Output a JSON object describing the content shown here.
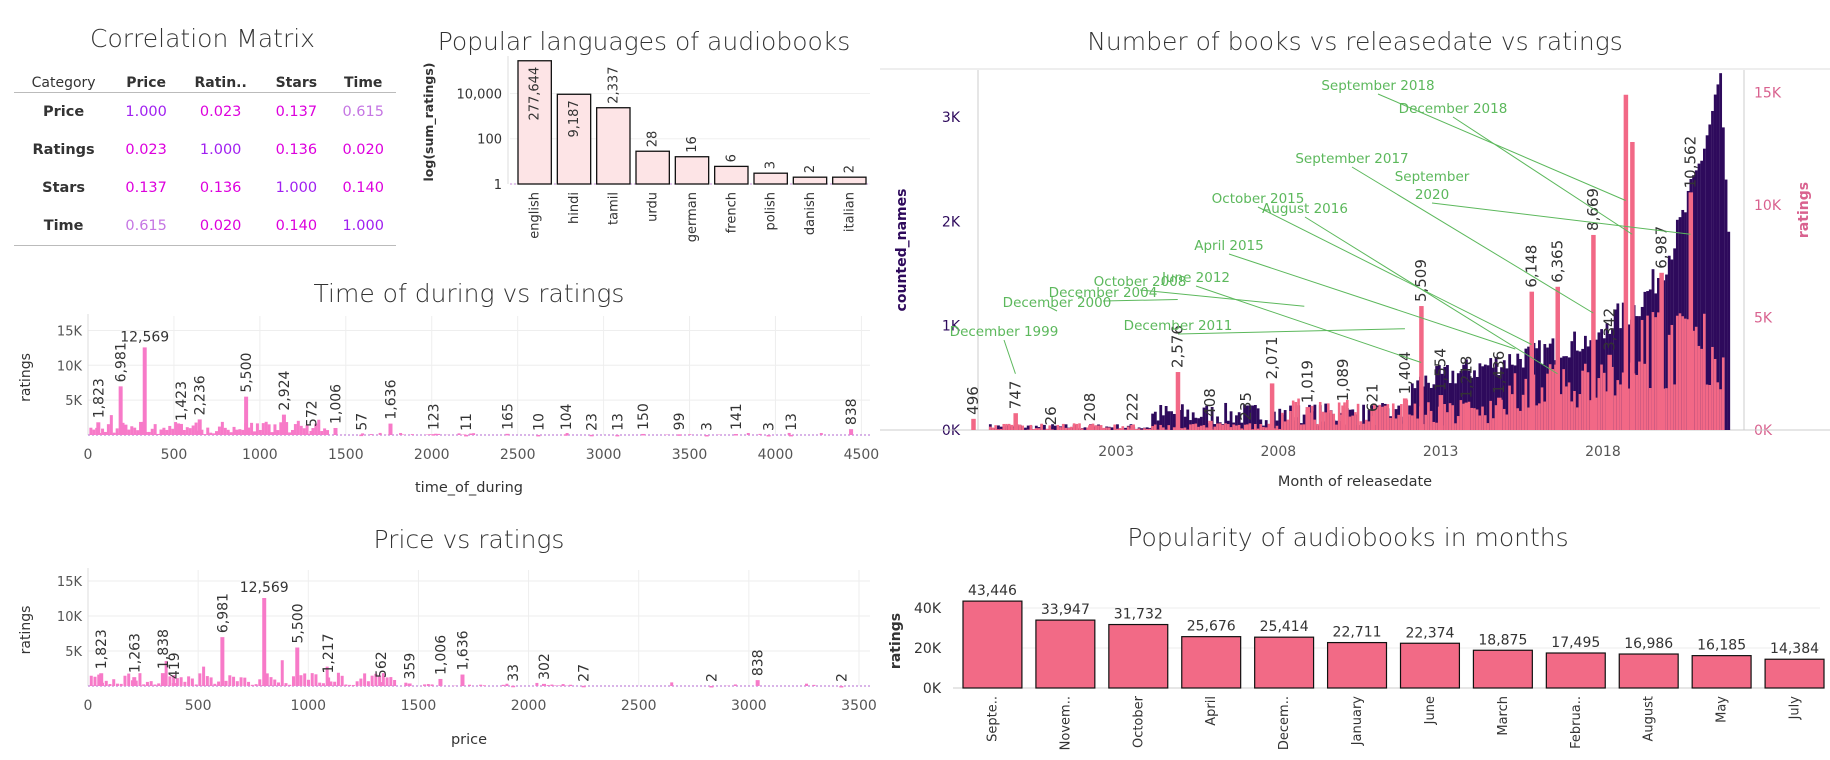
{
  "correlation": {
    "title": "Correlation Matrix",
    "corner": "Category",
    "headers": [
      "Price",
      "Ratin..",
      "Stars",
      "Time"
    ],
    "rows": [
      {
        "label": "Price",
        "cells": [
          {
            "v": "1.000",
            "c": "#a020f0"
          },
          {
            "v": "0.023",
            "c": "#dd00dd"
          },
          {
            "v": "0.137",
            "c": "#dd00dd"
          },
          {
            "v": "0.615",
            "c": "#c576e3"
          }
        ]
      },
      {
        "label": "Ratings",
        "cells": [
          {
            "v": "0.023",
            "c": "#dd00dd"
          },
          {
            "v": "1.000",
            "c": "#a020f0"
          },
          {
            "v": "0.136",
            "c": "#dd00dd"
          },
          {
            "v": "0.020",
            "c": "#dd00dd"
          }
        ]
      },
      {
        "label": "Stars",
        "cells": [
          {
            "v": "0.137",
            "c": "#dd00dd"
          },
          {
            "v": "0.136",
            "c": "#dd00dd"
          },
          {
            "v": "1.000",
            "c": "#a020f0"
          },
          {
            "v": "0.140",
            "c": "#dd00dd"
          }
        ]
      },
      {
        "label": "Time",
        "cells": [
          {
            "v": "0.615",
            "c": "#c576e3"
          },
          {
            "v": "0.020",
            "c": "#dd00dd"
          },
          {
            "v": "0.140",
            "c": "#dd00dd"
          },
          {
            "v": "1.000",
            "c": "#a020f0"
          }
        ]
      }
    ]
  },
  "chart_data": [
    {
      "id": "languages",
      "type": "bar",
      "title": "Popular languages of audiobooks",
      "ylabel": "log(sum_ratings)",
      "xlabel": "",
      "yscale": "log",
      "yticks": [
        "1",
        "100",
        "10,000"
      ],
      "categories": [
        "english",
        "hindi",
        "tamil",
        "urdu",
        "german",
        "french",
        "polish",
        "danish",
        "italian"
      ],
      "values": [
        277644,
        9187,
        2337,
        28,
        16,
        6,
        3,
        2,
        2
      ],
      "labels": [
        "277,644",
        "9,187",
        "2,337",
        "28",
        "16",
        "6",
        "3",
        "2",
        "2"
      ],
      "color": "#fde4e6"
    },
    {
      "id": "duration",
      "type": "bar",
      "title": "Time of during vs ratings",
      "xlabel": "time_of_during",
      "ylabel": "ratings",
      "xlim": [
        0,
        4550
      ],
      "ylim": [
        0,
        16500
      ],
      "xticks": [
        "0",
        "500",
        "1000",
        "1500",
        "2000",
        "2500",
        "3000",
        "3500",
        "4000",
        "4500"
      ],
      "yticks": [
        "5K",
        "10K",
        "15K"
      ],
      "color": "#f77ac8",
      "labeled_points": [
        {
          "x": 60,
          "y": 1823,
          "label": "1,823"
        },
        {
          "x": 190,
          "y": 6981,
          "label": "6,981"
        },
        {
          "x": 330,
          "y": 12569,
          "label": "12,569"
        },
        {
          "x": 540,
          "y": 1423,
          "label": "1,423"
        },
        {
          "x": 650,
          "y": 2236,
          "label": "2,236"
        },
        {
          "x": 920,
          "y": 5500,
          "label": "5,500"
        },
        {
          "x": 1140,
          "y": 2924,
          "label": "2,924"
        },
        {
          "x": 1300,
          "y": 572,
          "label": "572"
        },
        {
          "x": 1440,
          "y": 1006,
          "label": "1,006"
        },
        {
          "x": 1590,
          "y": 57,
          "label": "57"
        },
        {
          "x": 1760,
          "y": 1636,
          "label": "1,636"
        },
        {
          "x": 2010,
          "y": 123,
          "label": "123"
        },
        {
          "x": 2200,
          "y": 11,
          "label": "11"
        },
        {
          "x": 2440,
          "y": 165,
          "label": "165"
        },
        {
          "x": 2620,
          "y": 10,
          "label": "10"
        },
        {
          "x": 2780,
          "y": 104,
          "label": "104"
        },
        {
          "x": 2930,
          "y": 23,
          "label": "23"
        },
        {
          "x": 3080,
          "y": 13,
          "label": "13"
        },
        {
          "x": 3230,
          "y": 150,
          "label": "150"
        },
        {
          "x": 3440,
          "y": 99,
          "label": "99"
        },
        {
          "x": 3600,
          "y": 3,
          "label": "3"
        },
        {
          "x": 3770,
          "y": 141,
          "label": "141"
        },
        {
          "x": 3960,
          "y": 3,
          "label": "3"
        },
        {
          "x": 4090,
          "y": 13,
          "label": "13"
        },
        {
          "x": 4440,
          "y": 838,
          "label": "838"
        }
      ]
    },
    {
      "id": "price",
      "type": "bar",
      "title": "Price vs ratings",
      "xlabel": "price",
      "ylabel": "ratings",
      "xlim": [
        0,
        3550
      ],
      "ylim": [
        0,
        16000
      ],
      "xticks": [
        "0",
        "500",
        "1000",
        "1500",
        "2000",
        "2500",
        "3000",
        "3500"
      ],
      "yticks": [
        "5K",
        "10K",
        "15K"
      ],
      "color": "#f77ac8",
      "labeled_points": [
        {
          "x": 60,
          "y": 1823,
          "label": "1,823"
        },
        {
          "x": 210,
          "y": 1263,
          "label": "1,263"
        },
        {
          "x": 340,
          "y": 1838,
          "label": "1,838"
        },
        {
          "x": 390,
          "y": 419,
          "label": "419"
        },
        {
          "x": 610,
          "y": 6981,
          "label": "6,981"
        },
        {
          "x": 800,
          "y": 12569,
          "label": "12,569"
        },
        {
          "x": 950,
          "y": 5500,
          "label": "5,500"
        },
        {
          "x": 1090,
          "y": 1217,
          "label": "1,217"
        },
        {
          "x": 1330,
          "y": 562,
          "label": "562"
        },
        {
          "x": 1460,
          "y": 359,
          "label": "359"
        },
        {
          "x": 1600,
          "y": 1006,
          "label": "1,006"
        },
        {
          "x": 1700,
          "y": 1636,
          "label": "1,636"
        },
        {
          "x": 1930,
          "y": 33,
          "label": "33"
        },
        {
          "x": 2070,
          "y": 302,
          "label": "302"
        },
        {
          "x": 2250,
          "y": 27,
          "label": "27"
        },
        {
          "x": 2830,
          "y": 2,
          "label": "2"
        },
        {
          "x": 3040,
          "y": 838,
          "label": "838"
        },
        {
          "x": 3420,
          "y": 2,
          "label": "2"
        }
      ]
    },
    {
      "id": "release",
      "type": "bar",
      "title": "Number of books  vs releasedate vs ratings",
      "xlabel": "Month of releasedate",
      "ylabel": "counted_names",
      "ylabel_right": "ratings",
      "xlim": [
        1998.5,
        2022.1
      ],
      "ylim": [
        0,
        3450
      ],
      "ylim_right": [
        0,
        16000
      ],
      "xticks": [
        "2003",
        "2008",
        "2013",
        "2018"
      ],
      "yticks": [
        "0K",
        "1K",
        "2K",
        "3K"
      ],
      "yticks_right": [
        "0K",
        "5K",
        "10K",
        "15K"
      ],
      "colors": {
        "count": "#2e0a5c",
        "ratings": "#f26886",
        "annotation": "#5cb85c",
        "left_axis": "#2e0a5c",
        "right_axis": "#d9628f"
      },
      "labeled_points": [
        {
          "x": 1998.6,
          "y": 496,
          "label": "496"
        },
        {
          "x": 1999.9,
          "y": 747,
          "label": "747"
        },
        {
          "x": 2001.0,
          "y": 26,
          "label": "26"
        },
        {
          "x": 2002.2,
          "y": 208,
          "label": "208"
        },
        {
          "x": 2003.5,
          "y": 222,
          "label": "222"
        },
        {
          "x": 2004.9,
          "y": 2576,
          "label": "2,576"
        },
        {
          "x": 2005.9,
          "y": 408,
          "label": "408"
        },
        {
          "x": 2007.0,
          "y": 235,
          "label": "235"
        },
        {
          "x": 2007.8,
          "y": 2071,
          "label": "2,071"
        },
        {
          "x": 2008.9,
          "y": 1019,
          "label": "1,019"
        },
        {
          "x": 2010.0,
          "y": 1089,
          "label": "1,089"
        },
        {
          "x": 2010.9,
          "y": 621,
          "label": "621"
        },
        {
          "x": 2011.9,
          "y": 1404,
          "label": "1,404"
        },
        {
          "x": 2012.4,
          "y": 5509,
          "label": "5,509"
        },
        {
          "x": 2013.0,
          "y": 1554,
          "label": "1,554"
        },
        {
          "x": 2013.8,
          "y": 1218,
          "label": "1,218"
        },
        {
          "x": 2014.8,
          "y": 1436,
          "label": "1,436"
        },
        {
          "x": 2015.8,
          "y": 6148,
          "label": "6,148"
        },
        {
          "x": 2016.6,
          "y": 6365,
          "label": "6,365"
        },
        {
          "x": 2017.7,
          "y": 8669,
          "label": "8,669"
        },
        {
          "x": 2018.2,
          "y": 3342,
          "label": "3,342"
        },
        {
          "x": 2019.8,
          "y": 6987,
          "label": "6,987"
        },
        {
          "x": 2020.7,
          "y": 10562,
          "label": "10,562"
        }
      ],
      "annotations": [
        {
          "text": "December 1999",
          "x": 1999.9
        },
        {
          "text": "December 2000",
          "x": 2000.9
        },
        {
          "text": "December 2004",
          "x": 2004.9
        },
        {
          "text": "October 2008",
          "x": 2008.8
        },
        {
          "text": "June 2012",
          "x": 2012.4
        },
        {
          "text": "December 2011",
          "x": 2011.9
        },
        {
          "text": "April 2015",
          "x": 2015.3
        },
        {
          "text": "October 2015",
          "x": 2015.8
        },
        {
          "text": "August 2016",
          "x": 2016.6
        },
        {
          "text": "September 2017",
          "x": 2017.7
        },
        {
          "text": "September 2018",
          "x": 2018.7
        },
        {
          "text": "December 2018",
          "x": 2018.9
        },
        {
          "text": "September 2020",
          "x": 2020.7
        }
      ]
    },
    {
      "id": "months",
      "type": "bar",
      "title": "Popularity of audiobooks in months",
      "xlabel": "",
      "ylabel": "ratings",
      "ylim": [
        0,
        47000
      ],
      "yticks": [
        "0K",
        "20K",
        "40K"
      ],
      "categories": [
        "Septe..",
        "Novem..",
        "October",
        "April",
        "Decem..",
        "January",
        "June",
        "March",
        "Februa..",
        "August",
        "May",
        "July"
      ],
      "values": [
        43446,
        33947,
        31732,
        25676,
        25414,
        22711,
        22374,
        18875,
        17495,
        16986,
        16185,
        14384
      ],
      "labels": [
        "43,446",
        "33,947",
        "31,732",
        "25,676",
        "25,414",
        "22,711",
        "22,374",
        "18,875",
        "17,495",
        "16,986",
        "16,185",
        "14,384"
      ],
      "color": "#f26a86"
    }
  ]
}
